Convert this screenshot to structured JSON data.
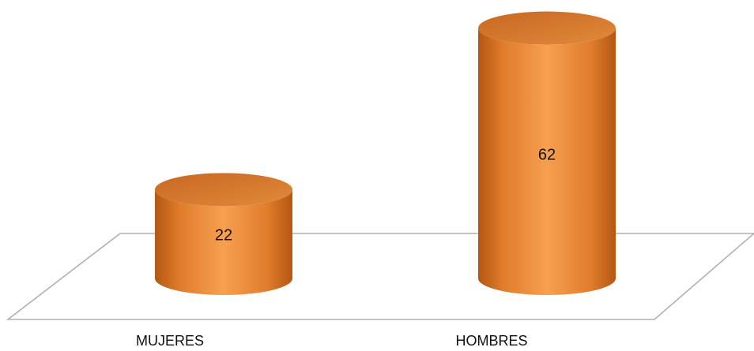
{
  "chart_data": {
    "type": "bar",
    "style": "3d-cylinder",
    "categories": [
      "MUJERES",
      "HOMBRES"
    ],
    "values": [
      22,
      62
    ],
    "title": "",
    "xlabel": "",
    "ylabel": "",
    "ylim": [
      0,
      70
    ],
    "grid": false,
    "legend": "none",
    "data_labels": true,
    "colors": {
      "bar": "#f28f33",
      "bar_dark": "#b35714",
      "bar_top": "#d7762a",
      "floor_stroke": "#b0b0b0",
      "text": "#111111"
    }
  }
}
